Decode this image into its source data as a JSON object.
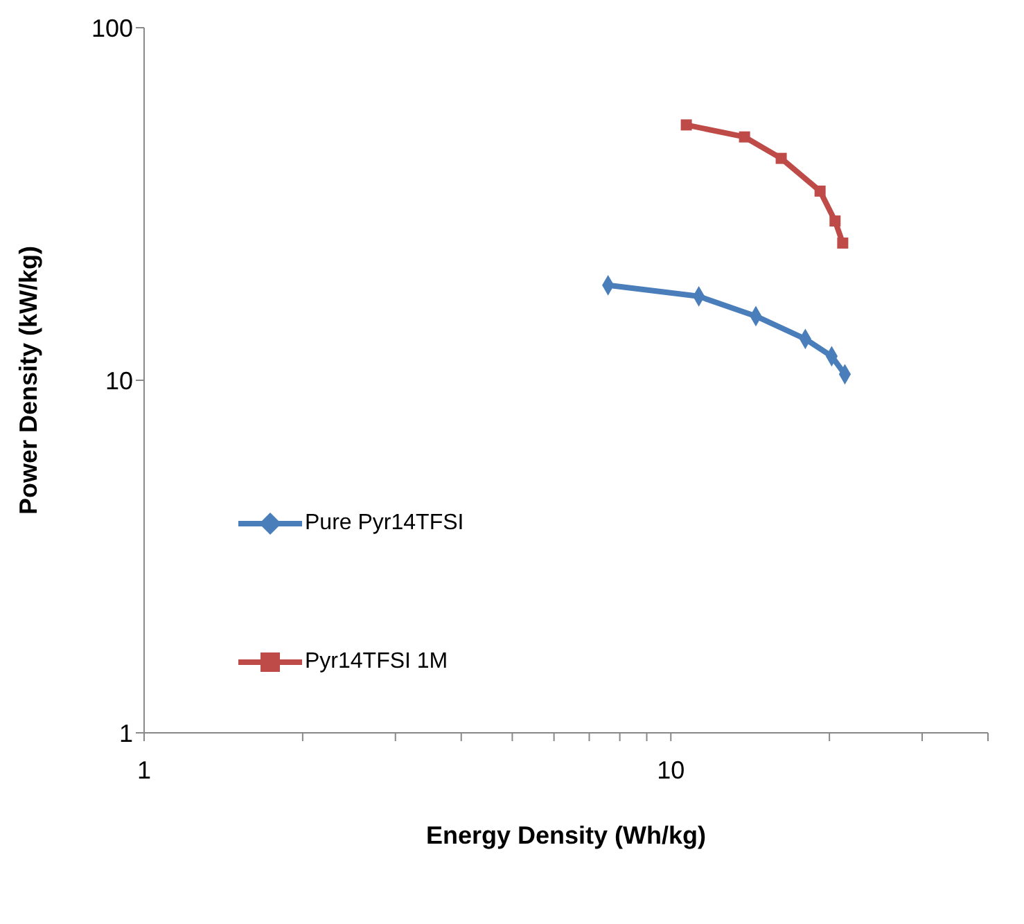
{
  "chart_data": {
    "type": "line",
    "xlabel": "Energy Density (Wh/kg)",
    "ylabel": "Power Density (kW/kg)",
    "log": "xy",
    "xlim": [
      1,
      40
    ],
    "ylim": [
      1,
      100
    ],
    "xticks": [
      1,
      {
        "value": 2,
        "label": null
      },
      {
        "value": 3,
        "label": null
      },
      {
        "value": 4,
        "label": null
      },
      {
        "value": 5,
        "label": null
      },
      {
        "value": 6,
        "label": null
      },
      {
        "value": 7,
        "label": null
      },
      {
        "value": 8,
        "label": null
      },
      {
        "value": 9,
        "label": null
      },
      10,
      {
        "value": 20,
        "label": null
      },
      {
        "value": 30,
        "label": null
      },
      {
        "value": 40,
        "label": null
      }
    ],
    "yticks": [
      1,
      10,
      100
    ],
    "legend": "left",
    "series": [
      {
        "name": "Pure Pyr14TFSI",
        "color": "#4a7ebb",
        "marker": "diamond",
        "x": [
          7.6,
          11.3,
          14.5,
          18.0,
          20.2,
          21.4
        ],
        "values": [
          18.6,
          17.3,
          15.2,
          13.1,
          11.7,
          10.4
        ]
      },
      {
        "name": "Pyr14TFSI 1M",
        "color": "#be4b48",
        "marker": "square",
        "x": [
          10.7,
          13.8,
          16.2,
          19.2,
          20.5,
          21.2
        ],
        "values": [
          53,
          49,
          42.6,
          34.4,
          28.3,
          24.5
        ]
      }
    ]
  }
}
